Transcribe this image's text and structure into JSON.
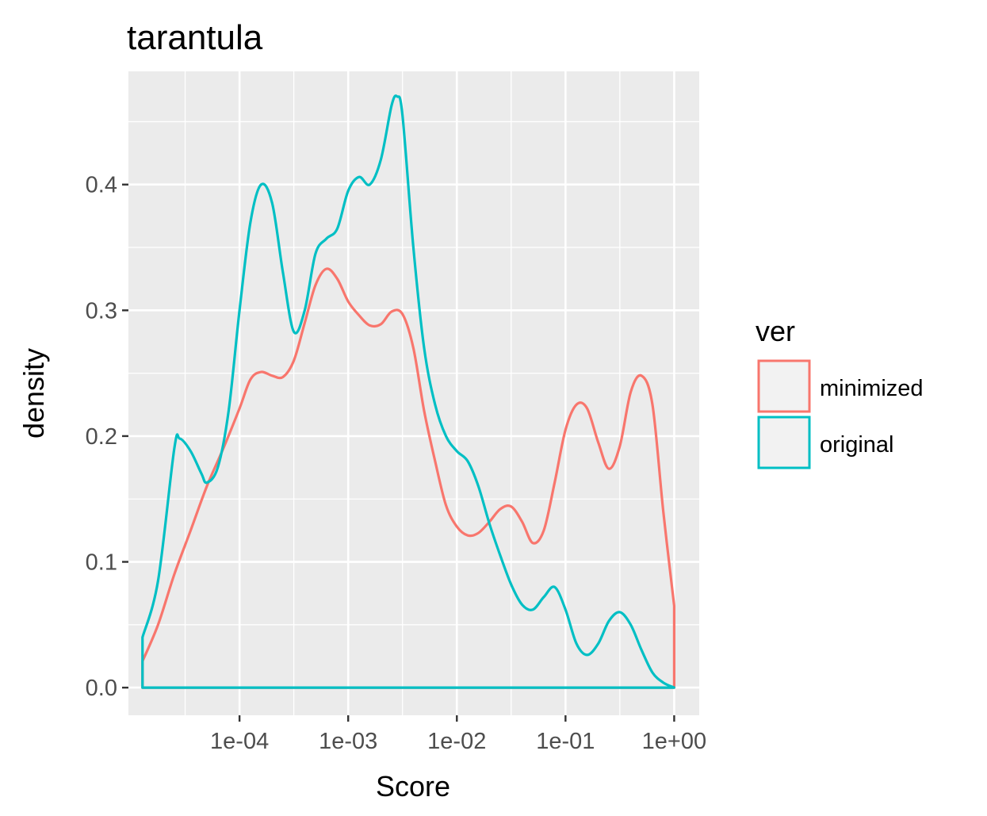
{
  "chart_data": {
    "type": "line",
    "title": "tarantula",
    "xlabel": "Score",
    "ylabel": "density",
    "x_scale": "log10",
    "xlim": [
      9.5e-06,
      1.7
    ],
    "ylim": [
      -0.022,
      0.49
    ],
    "x_ticks": [
      {
        "value": 0.0001,
        "label": "1e-04"
      },
      {
        "value": 0.001,
        "label": "1e-03"
      },
      {
        "value": 0.01,
        "label": "1e-02"
      },
      {
        "value": 0.1,
        "label": "1e-01"
      },
      {
        "value": 1,
        "label": "1e+00"
      }
    ],
    "x_minor": [
      3.16e-05,
      0.000316,
      0.00316,
      0.0316,
      0.316
    ],
    "y_ticks": [
      {
        "value": 0.0,
        "label": "0.0"
      },
      {
        "value": 0.1,
        "label": "0.1"
      },
      {
        "value": 0.2,
        "label": "0.2"
      },
      {
        "value": 0.3,
        "label": "0.3"
      },
      {
        "value": 0.4,
        "label": "0.4"
      }
    ],
    "y_minor": [
      0.05,
      0.15,
      0.25,
      0.35,
      0.45
    ],
    "grid": true,
    "legend": {
      "title": "ver",
      "position": "right"
    },
    "series": [
      {
        "name": "minimized",
        "color": "#F8766D",
        "points": [
          [
            1.28e-05,
            0.021
          ],
          [
            1.78e-05,
            0.05
          ],
          [
            2.51e-05,
            0.09
          ],
          [
            3.55e-05,
            0.125
          ],
          [
            5e-05,
            0.16
          ],
          [
            7.08e-05,
            0.19
          ],
          [
            0.0001,
            0.222
          ],
          [
            0.000126,
            0.245
          ],
          [
            0.000158,
            0.251
          ],
          [
            0.0002,
            0.248
          ],
          [
            0.000251,
            0.247
          ],
          [
            0.000316,
            0.26
          ],
          [
            0.000398,
            0.29
          ],
          [
            0.0005,
            0.32
          ],
          [
            0.000631,
            0.333
          ],
          [
            0.000794,
            0.325
          ],
          [
            0.001,
            0.307
          ],
          [
            0.00126,
            0.296
          ],
          [
            0.00158,
            0.288
          ],
          [
            0.002,
            0.289
          ],
          [
            0.00251,
            0.299
          ],
          [
            0.00316,
            0.297
          ],
          [
            0.00398,
            0.27
          ],
          [
            0.005,
            0.22
          ],
          [
            0.00631,
            0.18
          ],
          [
            0.00794,
            0.145
          ],
          [
            0.01,
            0.128
          ],
          [
            0.0126,
            0.121
          ],
          [
            0.0158,
            0.123
          ],
          [
            0.02,
            0.132
          ],
          [
            0.0251,
            0.142
          ],
          [
            0.0316,
            0.144
          ],
          [
            0.0398,
            0.132
          ],
          [
            0.05,
            0.115
          ],
          [
            0.0631,
            0.125
          ],
          [
            0.0794,
            0.163
          ],
          [
            0.1,
            0.205
          ],
          [
            0.126,
            0.225
          ],
          [
            0.158,
            0.222
          ],
          [
            0.2,
            0.195
          ],
          [
            0.251,
            0.174
          ],
          [
            0.316,
            0.192
          ],
          [
            0.398,
            0.235
          ],
          [
            0.5,
            0.248
          ],
          [
            0.631,
            0.225
          ],
          [
            0.794,
            0.14
          ],
          [
            1,
            0.065
          ]
        ]
      },
      {
        "name": "original",
        "color": "#00BFC4",
        "points": [
          [
            1.28e-05,
            0.04
          ],
          [
            1.78e-05,
            0.085
          ],
          [
            2.51e-05,
            0.19
          ],
          [
            2.82e-05,
            0.198
          ],
          [
            3.55e-05,
            0.188
          ],
          [
            4.47e-05,
            0.17
          ],
          [
            5e-05,
            0.163
          ],
          [
            6.31e-05,
            0.175
          ],
          [
            7.94e-05,
            0.22
          ],
          [
            0.0001,
            0.3
          ],
          [
            0.000126,
            0.37
          ],
          [
            0.000158,
            0.4
          ],
          [
            0.0002,
            0.385
          ],
          [
            0.000251,
            0.33
          ],
          [
            0.000316,
            0.283
          ],
          [
            0.000398,
            0.3
          ],
          [
            0.0005,
            0.345
          ],
          [
            0.000631,
            0.357
          ],
          [
            0.000794,
            0.365
          ],
          [
            0.001,
            0.395
          ],
          [
            0.00126,
            0.406
          ],
          [
            0.00158,
            0.4
          ],
          [
            0.002,
            0.42
          ],
          [
            0.00251,
            0.463
          ],
          [
            0.00282,
            0.47
          ],
          [
            0.00316,
            0.455
          ],
          [
            0.00398,
            0.35
          ],
          [
            0.005,
            0.27
          ],
          [
            0.00631,
            0.225
          ],
          [
            0.00794,
            0.2
          ],
          [
            0.01,
            0.188
          ],
          [
            0.0126,
            0.18
          ],
          [
            0.0158,
            0.16
          ],
          [
            0.02,
            0.13
          ],
          [
            0.0251,
            0.105
          ],
          [
            0.0316,
            0.082
          ],
          [
            0.0398,
            0.066
          ],
          [
            0.05,
            0.062
          ],
          [
            0.0631,
            0.072
          ],
          [
            0.0794,
            0.08
          ],
          [
            0.1,
            0.062
          ],
          [
            0.126,
            0.035
          ],
          [
            0.158,
            0.026
          ],
          [
            0.2,
            0.035
          ],
          [
            0.251,
            0.053
          ],
          [
            0.316,
            0.06
          ],
          [
            0.398,
            0.05
          ],
          [
            0.5,
            0.03
          ],
          [
            0.631,
            0.012
          ],
          [
            0.794,
            0.004
          ],
          [
            1,
            0.0
          ]
        ]
      }
    ]
  }
}
